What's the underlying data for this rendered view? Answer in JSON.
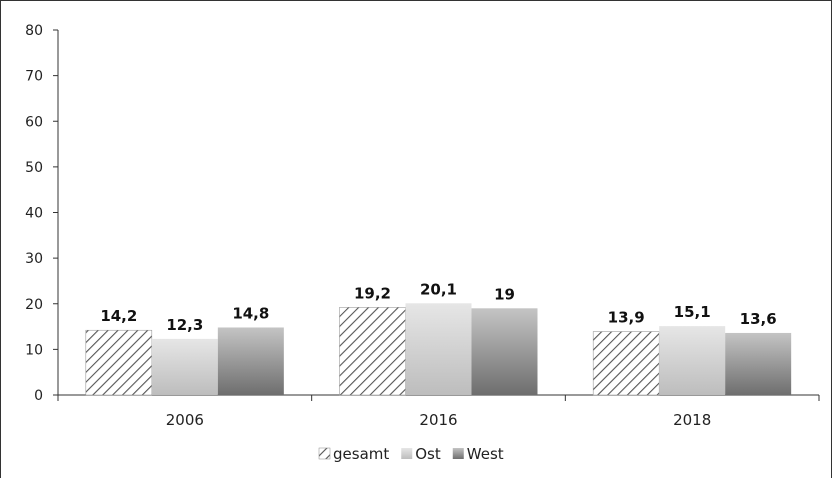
{
  "chart_data": {
    "type": "bar",
    "categories": [
      "2006",
      "2016",
      "2018"
    ],
    "series": [
      {
        "name": "gesamt",
        "values": [
          14.2,
          19.2,
          13.9
        ],
        "labels": [
          "14,2",
          "19,2",
          "13,9"
        ],
        "fill": "hatch"
      },
      {
        "name": "Ost",
        "values": [
          12.3,
          20.1,
          15.1
        ],
        "labels": [
          "12,3",
          "20,1",
          "15,1"
        ],
        "fill": "light-gradient"
      },
      {
        "name": "West",
        "values": [
          14.8,
          19,
          13.6
        ],
        "labels": [
          "14,8",
          "19",
          "13,6"
        ],
        "fill": "dark-gradient"
      }
    ],
    "y_ticks": [
      "0",
      "10",
      "20",
      "30",
      "40",
      "50",
      "60",
      "70",
      "80"
    ],
    "ylim": [
      0,
      80
    ],
    "grid": false,
    "legend_position": "bottom",
    "colors": {
      "axis": "#333333",
      "hatch_line": "#555555",
      "ost_top": "#e6e6e6",
      "ost_bottom": "#bdbdbd",
      "west_top": "#c4c4c4",
      "west_bottom": "#6e6e6e"
    }
  }
}
